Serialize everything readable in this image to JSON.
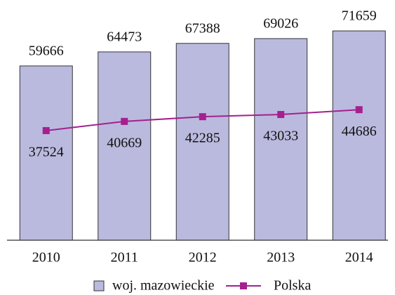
{
  "chart_data": {
    "type": "bar_line",
    "categories": [
      "2010",
      "2011",
      "2012",
      "2013",
      "2014"
    ],
    "series": [
      {
        "name": "woj. mazowieckie",
        "type": "bar",
        "color": "#babade",
        "values": [
          59666,
          64473,
          67388,
          69026,
          71659
        ]
      },
      {
        "name": "Polska",
        "type": "line",
        "color": "#a5208f",
        "values": [
          37524,
          40669,
          42285,
          43033,
          44686
        ]
      }
    ]
  }
}
